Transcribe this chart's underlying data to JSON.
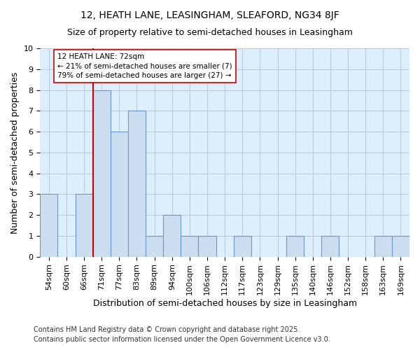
{
  "title": "12, HEATH LANE, LEASINGHAM, SLEAFORD, NG34 8JF",
  "subtitle": "Size of property relative to semi-detached houses in Leasingham",
  "xlabel": "Distribution of semi-detached houses by size in Leasingham",
  "ylabel": "Number of semi-detached properties",
  "footnote": "Contains HM Land Registry data © Crown copyright and database right 2025.\nContains public sector information licensed under the Open Government Licence v3.0.",
  "categories": [
    "54sqm",
    "60sqm",
    "66sqm",
    "71sqm",
    "77sqm",
    "83sqm",
    "89sqm",
    "94sqm",
    "100sqm",
    "106sqm",
    "112sqm",
    "117sqm",
    "123sqm",
    "129sqm",
    "135sqm",
    "140sqm",
    "146sqm",
    "152sqm",
    "158sqm",
    "163sqm",
    "169sqm"
  ],
  "values": [
    3,
    0,
    3,
    8,
    6,
    7,
    1,
    2,
    1,
    1,
    0,
    1,
    0,
    0,
    1,
    0,
    1,
    0,
    0,
    1,
    1
  ],
  "bar_color": "#ccddef",
  "bar_edgecolor": "#6699cc",
  "subject_line_color": "#cc0000",
  "annotation_text": "12 HEATH LANE: 72sqm\n← 21% of semi-detached houses are smaller (7)\n79% of semi-detached houses are larger (27) →",
  "annotation_box_facecolor": "#ffffff",
  "annotation_box_edgecolor": "#cc0000",
  "ylim": [
    0,
    10
  ],
  "yticks": [
    0,
    1,
    2,
    3,
    4,
    5,
    6,
    7,
    8,
    9,
    10
  ],
  "grid_color": "#bbccdd",
  "plot_bg_color": "#ddeeff",
  "fig_bg_color": "#ffffff",
  "title_fontsize": 10,
  "subtitle_fontsize": 9,
  "axis_label_fontsize": 9,
  "tick_fontsize": 8,
  "footnote_fontsize": 7
}
